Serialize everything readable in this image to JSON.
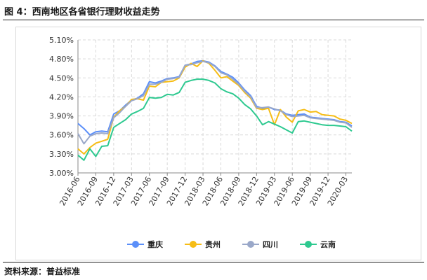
{
  "figure": {
    "title": "图 4：西南地区各省银行理财收益走势",
    "source": "资料来源：普益标准"
  },
  "chart_data": {
    "type": "line",
    "title": "",
    "xlabel": "",
    "ylabel": "",
    "ylim": [
      3.0,
      5.1
    ],
    "y_ticks": [
      "3.00%",
      "3.30%",
      "3.60%",
      "3.90%",
      "4.20%",
      "4.50%",
      "4.80%",
      "5.10%"
    ],
    "grid": "dashed",
    "legend_position": "bottom",
    "x_tick_labels": [
      "2016-06",
      "2016-09",
      "2016-12",
      "2017-03",
      "2017-06",
      "2017-09",
      "2017-12",
      "2018-03",
      "2018-06",
      "2018-09",
      "2018-12",
      "2019-03",
      "2019-06",
      "2019-09",
      "2019-12",
      "2020-03"
    ],
    "x": [
      "2016-06",
      "2016-07",
      "2016-08",
      "2016-09",
      "2016-10",
      "2016-11",
      "2016-12",
      "2017-01",
      "2017-02",
      "2017-03",
      "2017-04",
      "2017-05",
      "2017-06",
      "2017-07",
      "2017-08",
      "2017-09",
      "2017-10",
      "2017-11",
      "2017-12",
      "2018-01",
      "2018-02",
      "2018-03",
      "2018-04",
      "2018-05",
      "2018-06",
      "2018-07",
      "2018-08",
      "2018-09",
      "2018-10",
      "2018-11",
      "2018-12",
      "2019-01",
      "2019-02",
      "2019-03",
      "2019-04",
      "2019-05",
      "2019-06",
      "2019-07",
      "2019-08",
      "2019-09",
      "2019-10",
      "2019-11",
      "2019-12",
      "2020-01",
      "2020-02",
      "2020-03",
      "2020-04"
    ],
    "series": [
      {
        "name": "重庆",
        "color": "#5b8ff9",
        "values": [
          3.78,
          3.7,
          3.6,
          3.65,
          3.66,
          3.65,
          3.93,
          3.98,
          4.07,
          4.15,
          4.18,
          4.25,
          4.44,
          4.42,
          4.45,
          4.49,
          4.5,
          4.52,
          4.7,
          4.72,
          4.76,
          4.77,
          4.75,
          4.69,
          4.6,
          4.56,
          4.51,
          4.42,
          4.31,
          4.22,
          4.05,
          4.02,
          4.04,
          4.0,
          3.99,
          3.93,
          3.91,
          3.92,
          3.93,
          3.88,
          3.87,
          3.86,
          3.85,
          3.84,
          3.81,
          3.8,
          3.74
        ]
      },
      {
        "name": "贵州",
        "color": "#f6bd16",
        "values": [
          3.38,
          3.3,
          3.4,
          3.47,
          3.5,
          3.53,
          3.88,
          3.98,
          4.05,
          4.16,
          4.17,
          4.15,
          4.37,
          4.36,
          4.43,
          4.44,
          4.45,
          4.5,
          4.67,
          4.73,
          4.68,
          4.77,
          4.73,
          4.62,
          4.5,
          4.52,
          4.45,
          4.38,
          4.27,
          4.18,
          4.02,
          4.0,
          4.02,
          3.76,
          4.0,
          3.88,
          3.8,
          3.98,
          4.0,
          3.96,
          3.97,
          3.92,
          3.91,
          3.9,
          3.85,
          3.83,
          3.78
        ]
      },
      {
        "name": "四川",
        "color": "#9aa8c9",
        "values": [
          3.62,
          3.46,
          3.58,
          3.62,
          3.63,
          3.62,
          3.87,
          3.95,
          4.05,
          4.14,
          4.17,
          4.22,
          4.4,
          4.4,
          4.43,
          4.48,
          4.49,
          4.51,
          4.7,
          4.71,
          4.74,
          4.76,
          4.74,
          4.68,
          4.58,
          4.55,
          4.48,
          4.4,
          4.29,
          4.2,
          4.03,
          4.03,
          4.04,
          4.01,
          3.98,
          3.92,
          3.89,
          3.9,
          3.91,
          3.87,
          3.86,
          3.85,
          3.84,
          3.83,
          3.8,
          3.79,
          3.72
        ]
      },
      {
        "name": "云南",
        "color": "#2ec990",
        "values": [
          3.28,
          3.2,
          3.38,
          3.26,
          3.42,
          3.43,
          3.72,
          3.78,
          3.84,
          3.93,
          3.97,
          4.02,
          4.19,
          4.18,
          4.19,
          4.24,
          4.23,
          4.27,
          4.43,
          4.46,
          4.48,
          4.48,
          4.46,
          4.42,
          4.33,
          4.28,
          4.25,
          4.18,
          4.08,
          4.01,
          3.9,
          3.76,
          3.81,
          3.77,
          3.73,
          3.68,
          3.63,
          3.81,
          3.82,
          3.8,
          3.78,
          3.76,
          3.75,
          3.75,
          3.74,
          3.73,
          3.66
        ]
      }
    ]
  }
}
